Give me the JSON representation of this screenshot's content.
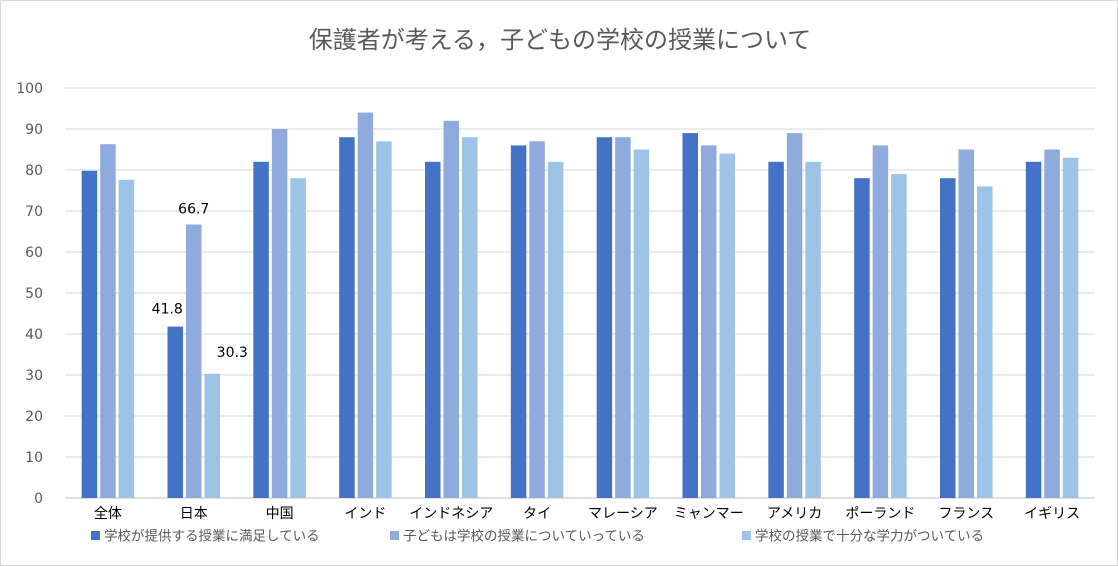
{
  "chart_data": {
    "type": "bar",
    "title": "保護者が考える，子どもの学校の授業について",
    "categories": [
      "全体",
      "日本",
      "中国",
      "インド",
      "インドネシア",
      "タイ",
      "マレーシア",
      "ミャンマー",
      "アメリカ",
      "ポーランド",
      "フランス",
      "イギリス"
    ],
    "series": [
      {
        "name": "学校が提供する授業に満足している",
        "color": "#4472c4",
        "values": [
          79.8,
          41.8,
          82,
          88,
          82,
          86,
          88,
          89,
          82,
          78,
          78,
          82
        ]
      },
      {
        "name": "子どもは学校の授業についていっている",
        "color": "#8faadc",
        "values": [
          86.3,
          66.7,
          90,
          94,
          92,
          87,
          88,
          86,
          89,
          86,
          85,
          85
        ]
      },
      {
        "name": "学校の授業で十分な学力がついている",
        "color": "#9dc3e6",
        "values": [
          77.6,
          30.3,
          78,
          87,
          88,
          82,
          85,
          84,
          82,
          79,
          76,
          83
        ]
      }
    ],
    "data_labels": [
      {
        "category": "日本",
        "series": 0,
        "text": "41.8"
      },
      {
        "category": "日本",
        "series": 1,
        "text": "66.7"
      },
      {
        "category": "日本",
        "series": 2,
        "text": "30.3"
      }
    ],
    "yticks": [
      "0",
      "10",
      "20",
      "30",
      "40",
      "50",
      "60",
      "70",
      "80",
      "90",
      "100"
    ],
    "ylim": [
      0,
      100
    ],
    "xlabel": "",
    "ylabel": "",
    "grid": true,
    "legend_position": "bottom-left"
  }
}
